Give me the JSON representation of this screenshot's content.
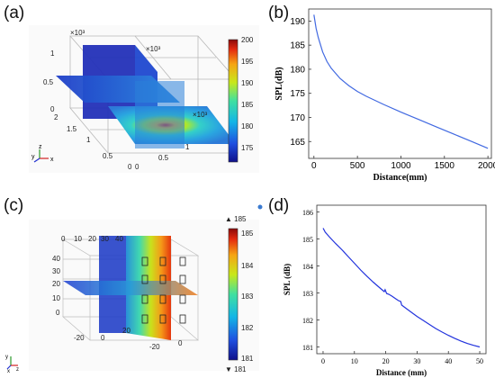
{
  "panels": {
    "a": "(a)",
    "b": "(b)",
    "c": "(c)",
    "d": "(d)"
  },
  "panel_a": {
    "exponent_labels": [
      "×10³",
      "×10³",
      "×10³"
    ],
    "axis_ticks_z": [
      "1",
      "0.5",
      "0"
    ],
    "axis_ticks_y": [
      "2",
      "1.5",
      "1",
      "0.5",
      "0"
    ],
    "axis_ticks_x": [
      "0",
      "0.5",
      "1"
    ],
    "axis_ticks_x2": [
      "0"
    ],
    "triad": {
      "y": "y",
      "z": "z",
      "x": "x"
    },
    "colorbar_ticks": [
      "200",
      "195",
      "190",
      "185",
      "180",
      "175"
    ],
    "colorbar_range": [
      172,
      200
    ]
  },
  "panel_c": {
    "top_ticks": [
      "0",
      "10",
      "20",
      "30",
      "40"
    ],
    "left_ticks": [
      "40",
      "30",
      "20",
      "10",
      "0"
    ],
    "bottom_ticks": [
      "-20",
      "0",
      "20"
    ],
    "bottom_ticks2": [
      "-20",
      "0"
    ],
    "triad": {
      "y": "y",
      "z": "z",
      "x": "x"
    },
    "colorbar_ticks": [
      "185",
      "184",
      "183",
      "182",
      "181"
    ],
    "colorbar_max": "▲ 185",
    "colorbar_min": "▼ 181",
    "colorbar_range": [
      181,
      185
    ]
  },
  "chart_data": [
    {
      "type": "line",
      "panel": "(b)",
      "xlabel": "Distance(mm)",
      "ylabel": "SPL(dB)",
      "xlim": [
        -60,
        2040
      ],
      "ylim": [
        161.5,
        192.5
      ],
      "xticks": [
        0,
        500,
        1000,
        1500,
        2000
      ],
      "yticks": [
        165,
        170,
        175,
        180,
        185,
        190
      ],
      "x": [
        0,
        25,
        50,
        100,
        150,
        200,
        300,
        400,
        500,
        600,
        800,
        1000,
        1200,
        1400,
        1600,
        1800,
        2000
      ],
      "y": [
        191.3,
        188.5,
        186.6,
        183.6,
        181.6,
        180.2,
        178.1,
        176.6,
        175.4,
        174.4,
        172.7,
        171.1,
        169.6,
        168.1,
        166.6,
        165.1,
        163.6
      ],
      "color": "#4169e1"
    },
    {
      "type": "line",
      "panel": "(d)",
      "xlabel": "Distance (mm)",
      "ylabel": "SPL (dB)",
      "xlim": [
        -2,
        52
      ],
      "ylim": [
        180.75,
        186.25
      ],
      "xticks": [
        0,
        10,
        20,
        30,
        40,
        50
      ],
      "yticks": [
        181,
        182,
        183,
        184,
        185,
        186
      ],
      "x": [
        0,
        0.7,
        2,
        4,
        6,
        8,
        10,
        12,
        14,
        16,
        18,
        19.5,
        19.8,
        20.3,
        21,
        22,
        23,
        24,
        24.8,
        25.1,
        26,
        28,
        30,
        32,
        34,
        36,
        38,
        40,
        42,
        44,
        46,
        48,
        50
      ],
      "y": [
        185.4,
        185.25,
        185.08,
        184.83,
        184.6,
        184.35,
        184.1,
        183.85,
        183.62,
        183.4,
        183.2,
        183.05,
        183.12,
        182.98,
        182.95,
        182.88,
        182.8,
        182.72,
        182.68,
        182.55,
        182.47,
        182.3,
        182.13,
        181.98,
        181.83,
        181.68,
        181.55,
        181.43,
        181.32,
        181.22,
        181.13,
        181.06,
        181.0
      ],
      "color": "#2233dd"
    }
  ]
}
